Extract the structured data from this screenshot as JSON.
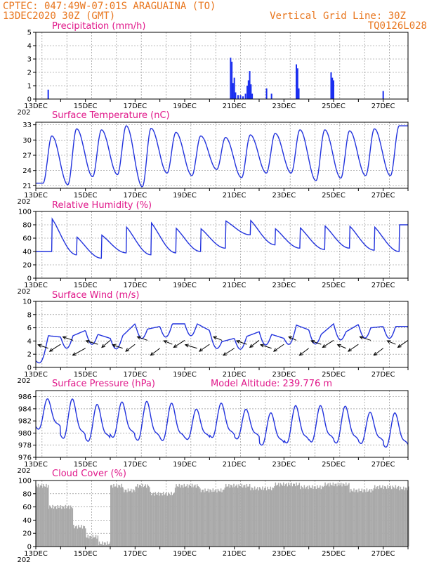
{
  "header": {
    "line1": "CPTEC:  047:49W-07:01S  ARAGUAINA (TO)",
    "line2": "13DEC2020 30Z (GMT)",
    "grid_note": "Vertical Grid Line: 30Z",
    "code": "TQ0126L028"
  },
  "x_axis": {
    "labels": [
      "13DEC",
      "15DEC",
      "17DEC",
      "19DEC",
      "21DEC",
      "23DEC",
      "25DEC",
      "27DEC"
    ],
    "year_fragment": "202"
  },
  "colors": {
    "line": "#2233dd",
    "bar": "#1a2ef0",
    "cloud": "#a9a9a9",
    "title": "#e0188a",
    "header": "#e8761e"
  },
  "chart_data": [
    {
      "type": "bar",
      "title": "Precipitation (mm/h)",
      "ylim": [
        0,
        5
      ],
      "yticks": [
        0,
        1,
        2,
        3,
        4,
        5
      ],
      "x_unit": "days since 13DEC 00Z",
      "points": [
        [
          0.5,
          0.7
        ],
        [
          7.85,
          3.1
        ],
        [
          7.9,
          2.8
        ],
        [
          7.95,
          1.2
        ],
        [
          8.0,
          1.6
        ],
        [
          8.05,
          0.5
        ],
        [
          8.15,
          0.3
        ],
        [
          8.25,
          0.3
        ],
        [
          8.35,
          0.2
        ],
        [
          8.45,
          0.4
        ],
        [
          8.52,
          1.0
        ],
        [
          8.57,
          1.4
        ],
        [
          8.62,
          2.1
        ],
        [
          8.67,
          1.1
        ],
        [
          8.72,
          0.4
        ],
        [
          9.3,
          0.8
        ],
        [
          9.5,
          0.4
        ],
        [
          10.5,
          2.6
        ],
        [
          10.55,
          2.3
        ],
        [
          10.6,
          0.8
        ],
        [
          11.9,
          2.0
        ],
        [
          11.95,
          1.6
        ],
        [
          12.0,
          1.4
        ],
        [
          14.0,
          0.6
        ]
      ]
    },
    {
      "type": "line",
      "title": "Surface Temperature (nC)",
      "ylim": [
        20.5,
        33.5
      ],
      "yticks": [
        21,
        24,
        27,
        30,
        33
      ],
      "tmin": [
        21.5,
        21.2,
        22.8,
        23.2,
        20.8,
        23.5,
        23.0,
        24.2,
        22.6,
        23.5,
        23.5,
        22.0,
        22.5,
        23.0,
        23.0
      ],
      "tmax": [
        30.8,
        32.2,
        32.0,
        32.8,
        32.3,
        31.5,
        30.8,
        30.5,
        31.0,
        31.3,
        32.0,
        32.0,
        31.8,
        32.2,
        32.8
      ],
      "model_altitude": ""
    },
    {
      "type": "line",
      "title": "Relative Humidity (%)",
      "ylim": [
        0,
        100
      ],
      "yticks": [
        0,
        20,
        40,
        60,
        80,
        100
      ],
      "rhmax": [
        100,
        68,
        70,
        85,
        92,
        82,
        80,
        90,
        94,
        80,
        82,
        85,
        85,
        84,
        80
      ],
      "rhmin": [
        40,
        35,
        30,
        38,
        35,
        38,
        40,
        45,
        65,
        50,
        45,
        43,
        45,
        42,
        40
      ]
    },
    {
      "type": "line",
      "title": "Surface Wind (m/s)",
      "ylim": [
        0,
        10
      ],
      "yticks": [
        0,
        2,
        4,
        6,
        8,
        10
      ],
      "speed": [
        1.0,
        4.8,
        4.6,
        4.8,
        5.6,
        5.0,
        4.4,
        4.8,
        6.6,
        5.8,
        6.2,
        6.6,
        6.6,
        6.6,
        5.6,
        3.9,
        4.4,
        4.7,
        5.4,
        5.0,
        4.4,
        6.4,
        5.7,
        5.0,
        6.6,
        5.4,
        6.5,
        6.0,
        6.2
      ],
      "barbs_u": [
        -1.2,
        -1.3,
        -1.2,
        -1.5,
        -1.4,
        -1.0,
        -1.2,
        -1.1,
        -1.2,
        -1.1,
        -1.0,
        -1.3,
        -1.4,
        -1.2,
        -1.0,
        -1.3,
        -1.2,
        -1.1,
        -1.3,
        -1.2,
        -0.9,
        -1.1,
        -1.2,
        -1.3,
        -1.0,
        -1.2,
        -1.3,
        -1.1,
        -1.0,
        -1.2
      ]
    },
    {
      "type": "line",
      "title": "Surface Pressure (hPa)",
      "ylim": [
        976,
        987
      ],
      "yticks": [
        976,
        978,
        980,
        982,
        984,
        986
      ],
      "pmax": [
        985.7,
        985.7,
        984.8,
        985.2,
        985.3,
        985.0,
        984.0,
        985.0,
        984.0,
        983.4,
        984.6,
        984.6,
        984.5,
        983.5,
        983.4
      ],
      "pmin": [
        979.7,
        977.9,
        977.5,
        978.2,
        977.6,
        977.6,
        978.0,
        978.2,
        978.1,
        977.0,
        977.2,
        977.4,
        977.2,
        977.3,
        976.6
      ],
      "model_altitude": "Model Altitude: 239.776  m"
    },
    {
      "type": "bar",
      "title": "Cloud Cover (%)",
      "ylim": [
        0,
        100
      ],
      "yticks": [
        0,
        20,
        40,
        60,
        80,
        100
      ],
      "segments": [
        [
          0.0,
          0.5,
          92
        ],
        [
          0.5,
          1.5,
          60
        ],
        [
          1.5,
          2.0,
          30
        ],
        [
          2.0,
          2.5,
          15
        ],
        [
          2.5,
          3.0,
          5
        ],
        [
          3.0,
          3.5,
          92
        ],
        [
          3.5,
          4.0,
          85
        ],
        [
          4.0,
          4.6,
          92
        ],
        [
          4.6,
          5.6,
          80
        ],
        [
          5.6,
          6.6,
          92
        ],
        [
          6.6,
          7.6,
          85
        ],
        [
          7.6,
          8.6,
          92
        ],
        [
          8.6,
          9.6,
          88
        ],
        [
          9.6,
          10.6,
          94
        ],
        [
          10.6,
          11.6,
          90
        ],
        [
          11.6,
          12.6,
          94
        ],
        [
          12.6,
          13.6,
          85
        ],
        [
          13.6,
          14.6,
          90
        ],
        [
          14.6,
          15.0,
          88
        ]
      ]
    }
  ]
}
